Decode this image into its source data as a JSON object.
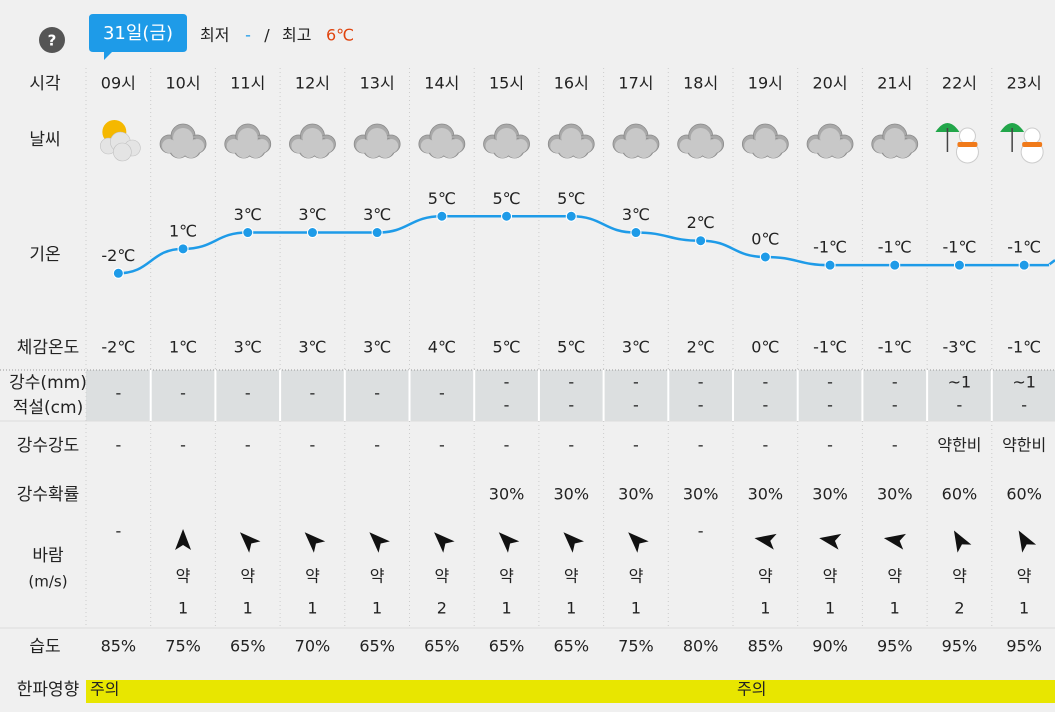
{
  "header": {
    "help": "?",
    "date": "31일(금)",
    "min_label": "최저",
    "min_value": "-",
    "separator": "/",
    "max_label": "최고",
    "max_value": "6℃"
  },
  "row_labels": {
    "time": "시각",
    "weather": "날씨",
    "temperature": "기온",
    "feels_like": "체감온도",
    "precip": "강수(mm)",
    "snow": "적설(cm)",
    "intensity": "강수강도",
    "probability": "강수확률",
    "wind": "바람",
    "wind_unit": "(m/s)",
    "humidity": "습도",
    "cold_wave": "한파영향"
  },
  "hours": [
    "09시",
    "10시",
    "11시",
    "12시",
    "13시",
    "14시",
    "15시",
    "16시",
    "17시",
    "18시",
    "19시",
    "20시",
    "21시",
    "22시",
    "23시"
  ],
  "temperature": {
    "values": [
      -2,
      1,
      3,
      3,
      3,
      5,
      5,
      5,
      3,
      2,
      0,
      -1,
      -1,
      -1,
      -1
    ],
    "value_labels": [
      "-2℃",
      "1℃",
      "3℃",
      "3℃",
      "3℃",
      "5℃",
      "5℃",
      "5℃",
      "3℃",
      "2℃",
      "0℃",
      "-1℃",
      "-1℃",
      "-1℃",
      "-1℃"
    ]
  },
  "feels_like": [
    "-2℃",
    "1℃",
    "3℃",
    "3℃",
    "3℃",
    "4℃",
    "5℃",
    "5℃",
    "3℃",
    "2℃",
    "0℃",
    "-1℃",
    "-1℃",
    "-3℃",
    "-1℃"
  ],
  "precip": [
    "-",
    "-",
    "-",
    "-",
    "-",
    "-",
    "-",
    "-",
    "-",
    "-",
    "-",
    "-",
    "-",
    "~1",
    "~1"
  ],
  "snow": [
    null,
    null,
    null,
    null,
    null,
    null,
    "-",
    "-",
    "-",
    "-",
    "-",
    "-",
    "-",
    "-",
    "-"
  ],
  "intensity": [
    "-",
    "-",
    "-",
    "-",
    "-",
    "-",
    "-",
    "-",
    "-",
    "-",
    "-",
    "-",
    "-",
    "약한비",
    "약한비"
  ],
  "probability": [
    null,
    null,
    null,
    null,
    null,
    null,
    "30%",
    "30%",
    "30%",
    "30%",
    "30%",
    "30%",
    "30%",
    "60%",
    "60%"
  ],
  "wind": {
    "none": [
      "-",
      null,
      null,
      null,
      null,
      null,
      null,
      null,
      null,
      "-",
      null,
      null,
      null,
      null,
      null
    ],
    "direction": [
      null,
      0,
      -45,
      -45,
      -45,
      -45,
      -45,
      -45,
      -45,
      null,
      -80,
      -80,
      -80,
      -30,
      -30
    ],
    "strength": [
      null,
      "약",
      "약",
      "약",
      "약",
      "약",
      "약",
      "약",
      "약",
      null,
      "약",
      "약",
      "약",
      "약",
      "약"
    ],
    "speed": [
      null,
      1,
      1,
      1,
      1,
      2,
      1,
      1,
      1,
      null,
      1,
      1,
      1,
      2,
      1
    ]
  },
  "humidity": [
    "85%",
    "75%",
    "65%",
    "70%",
    "65%",
    "65%",
    "65%",
    "65%",
    "75%",
    "80%",
    "85%",
    "90%",
    "95%",
    "95%",
    "95%"
  ],
  "cold_wave": [
    "주의",
    null,
    null,
    null,
    null,
    null,
    null,
    null,
    null,
    null,
    "주의",
    null,
    null,
    null,
    null
  ]
}
